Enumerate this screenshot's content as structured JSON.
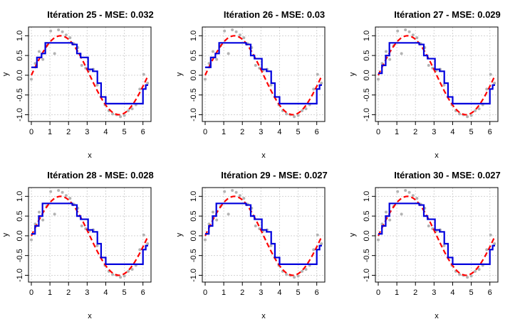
{
  "figure": {
    "panels": [
      {
        "title": "Itération 25 - MSE: 0.032"
      },
      {
        "title": "Itération 26 - MSE: 0.03"
      },
      {
        "title": "Itération 27 - MSE: 0.029"
      },
      {
        "title": "Itération 28 - MSE: 0.028"
      },
      {
        "title": "Itération 29 - MSE: 0.027"
      },
      {
        "title": "Itération 30 - MSE: 0.027"
      }
    ]
  },
  "colors": {
    "points": "#b3b3b3",
    "true_curve": "#ff0000",
    "model_fit": "#0000dd",
    "grid": "#d3d3d3",
    "axis": "#000000"
  },
  "chart_data": [
    {
      "type": "scatter",
      "title": "Itération 25 - MSE: 0.032",
      "xlabel": "x",
      "ylabel": "y",
      "xlim": [
        0,
        6.28
      ],
      "ylim": [
        -1.1,
        1.15
      ],
      "xticks": [
        "0",
        "1",
        "2",
        "3",
        "4",
        "5",
        "6"
      ],
      "yticks": [
        "-1.0",
        "-0.5",
        "0.0",
        "0.5",
        "1.0"
      ],
      "grid": true,
      "series": [
        {
          "kind": "points",
          "x": [
            0.0,
            0.21,
            0.42,
            0.62,
            0.83,
            1.04,
            1.25,
            1.46,
            1.67,
            1.87,
            2.08,
            2.29,
            2.5,
            2.71,
            2.92,
            3.12,
            3.33,
            3.54,
            3.75,
            3.96,
            4.17,
            4.37,
            4.58,
            4.79,
            5.0,
            5.21,
            5.42,
            5.62,
            5.83,
            6.04,
            6.25
          ],
          "y": [
            -0.1,
            0.3,
            0.6,
            0.4,
            0.75,
            1.12,
            0.55,
            1.15,
            1.1,
            1.02,
            0.95,
            0.8,
            0.7,
            0.25,
            0.18,
            0.12,
            0.15,
            -0.25,
            -0.55,
            -0.75,
            -0.9,
            -0.98,
            -1.0,
            -1.05,
            -1.02,
            -0.9,
            -0.85,
            -0.75,
            -0.35,
            0.02,
            -0.2
          ]
        },
        {
          "kind": "curve",
          "function": "sin",
          "x_range": [
            0,
            6.28
          ]
        },
        {
          "kind": "step",
          "x": [
            0.0,
            0.3,
            0.55,
            0.75,
            2.2,
            2.45,
            2.65,
            3.05,
            3.3,
            3.55,
            3.75,
            4.0,
            5.8,
            6.0,
            6.15
          ],
          "y": [
            0.2,
            0.45,
            0.55,
            0.82,
            0.78,
            0.55,
            0.45,
            0.15,
            0.1,
            -0.2,
            -0.55,
            -0.72,
            -0.72,
            -0.35,
            -0.25
          ]
        }
      ]
    },
    {
      "type": "scatter",
      "title": "Itération 26 - MSE: 0.03",
      "xlabel": "x",
      "ylabel": "y",
      "xlim": [
        0,
        6.28
      ],
      "ylim": [
        -1.1,
        1.15
      ],
      "xticks": [
        "0",
        "1",
        "2",
        "3",
        "4",
        "5",
        "6"
      ],
      "yticks": [
        "-1.0",
        "-0.5",
        "0.0",
        "0.5",
        "1.0"
      ],
      "grid": true,
      "series": [
        {
          "kind": "points",
          "x": [
            0.0,
            0.21,
            0.42,
            0.62,
            0.83,
            1.04,
            1.25,
            1.46,
            1.67,
            1.87,
            2.08,
            2.29,
            2.5,
            2.71,
            2.92,
            3.12,
            3.33,
            3.54,
            3.75,
            3.96,
            4.17,
            4.37,
            4.58,
            4.79,
            5.0,
            5.21,
            5.42,
            5.62,
            5.83,
            6.04,
            6.25
          ],
          "y": [
            -0.1,
            0.3,
            0.6,
            0.4,
            0.75,
            1.12,
            0.55,
            1.15,
            1.1,
            1.02,
            0.95,
            0.8,
            0.7,
            0.25,
            0.18,
            0.12,
            0.15,
            -0.25,
            -0.55,
            -0.75,
            -0.9,
            -0.98,
            -1.0,
            -1.05,
            -1.02,
            -0.9,
            -0.85,
            -0.75,
            -0.35,
            0.02,
            -0.2
          ]
        },
        {
          "kind": "curve",
          "function": "sin",
          "x_range": [
            0,
            6.28
          ]
        },
        {
          "kind": "step",
          "x": [
            0.0,
            0.3,
            0.55,
            0.75,
            2.2,
            2.45,
            2.65,
            3.05,
            3.3,
            3.55,
            3.75,
            4.0,
            5.8,
            6.0,
            6.15
          ],
          "y": [
            0.2,
            0.45,
            0.55,
            0.82,
            0.78,
            0.5,
            0.42,
            0.15,
            0.1,
            -0.2,
            -0.55,
            -0.72,
            -0.72,
            -0.35,
            -0.25
          ]
        }
      ]
    },
    {
      "type": "scatter",
      "title": "Itération 27 - MSE: 0.029",
      "xlabel": "x",
      "ylabel": "y",
      "xlim": [
        0,
        6.28
      ],
      "ylim": [
        -1.1,
        1.15
      ],
      "xticks": [
        "0",
        "1",
        "2",
        "3",
        "4",
        "5",
        "6"
      ],
      "yticks": [
        "-1.0",
        "-0.5",
        "0.0",
        "0.5",
        "1.0"
      ],
      "grid": true,
      "series": [
        {
          "kind": "points",
          "x": [
            0.0,
            0.21,
            0.42,
            0.62,
            0.83,
            1.04,
            1.25,
            1.46,
            1.67,
            1.87,
            2.08,
            2.29,
            2.5,
            2.71,
            2.92,
            3.12,
            3.33,
            3.54,
            3.75,
            3.96,
            4.17,
            4.37,
            4.58,
            4.79,
            5.0,
            5.21,
            5.42,
            5.62,
            5.83,
            6.04,
            6.25
          ],
          "y": [
            -0.1,
            0.3,
            0.6,
            0.4,
            0.75,
            1.12,
            0.55,
            1.15,
            1.1,
            1.02,
            0.95,
            0.8,
            0.7,
            0.25,
            0.18,
            0.12,
            0.15,
            -0.25,
            -0.55,
            -0.75,
            -0.9,
            -0.98,
            -1.0,
            -1.05,
            -1.02,
            -0.9,
            -0.85,
            -0.75,
            -0.35,
            0.02,
            -0.2
          ]
        },
        {
          "kind": "curve",
          "function": "sin",
          "x_range": [
            0,
            6.28
          ]
        },
        {
          "kind": "step",
          "x": [
            0.0,
            0.2,
            0.4,
            0.6,
            2.2,
            2.45,
            2.65,
            3.05,
            3.3,
            3.55,
            3.75,
            4.0,
            5.8,
            6.0,
            6.15
          ],
          "y": [
            0.05,
            0.25,
            0.5,
            0.82,
            0.78,
            0.5,
            0.42,
            0.15,
            0.1,
            -0.2,
            -0.55,
            -0.72,
            -0.72,
            -0.35,
            -0.25
          ]
        }
      ]
    },
    {
      "type": "scatter",
      "title": "Itération 28 - MSE: 0.028",
      "xlabel": "x",
      "ylabel": "y",
      "xlim": [
        0,
        6.28
      ],
      "ylim": [
        -1.1,
        1.15
      ],
      "xticks": [
        "0",
        "1",
        "2",
        "3",
        "4",
        "5",
        "6"
      ],
      "yticks": [
        "-1.0",
        "-0.5",
        "0.0",
        "0.5",
        "1.0"
      ],
      "grid": true,
      "series": [
        {
          "kind": "points",
          "x": [
            0.0,
            0.21,
            0.42,
            0.62,
            0.83,
            1.04,
            1.25,
            1.46,
            1.67,
            1.87,
            2.08,
            2.29,
            2.5,
            2.71,
            2.92,
            3.12,
            3.33,
            3.54,
            3.75,
            3.96,
            4.17,
            4.37,
            4.58,
            4.79,
            5.0,
            5.21,
            5.42,
            5.62,
            5.83,
            6.04,
            6.25
          ],
          "y": [
            -0.1,
            0.3,
            0.6,
            0.4,
            0.75,
            1.12,
            0.55,
            1.15,
            1.1,
            1.02,
            0.95,
            0.8,
            0.7,
            0.25,
            0.18,
            0.12,
            0.15,
            -0.25,
            -0.55,
            -0.75,
            -0.9,
            -0.98,
            -1.0,
            -1.05,
            -1.02,
            -0.9,
            -0.85,
            -0.75,
            -0.35,
            0.02,
            -0.2
          ]
        },
        {
          "kind": "curve",
          "function": "sin",
          "x_range": [
            0,
            6.28
          ]
        },
        {
          "kind": "step",
          "x": [
            0.0,
            0.2,
            0.4,
            0.6,
            2.2,
            2.45,
            2.65,
            3.05,
            3.3,
            3.55,
            3.75,
            4.0,
            5.8,
            6.0,
            6.15
          ],
          "y": [
            0.05,
            0.25,
            0.5,
            0.82,
            0.78,
            0.5,
            0.42,
            0.15,
            0.1,
            -0.2,
            -0.55,
            -0.72,
            -0.72,
            -0.35,
            -0.25
          ]
        }
      ]
    },
    {
      "type": "scatter",
      "title": "Itération 29 - MSE: 0.027",
      "xlabel": "x",
      "ylabel": "y",
      "xlim": [
        0,
        6.28
      ],
      "ylim": [
        -1.1,
        1.15
      ],
      "xticks": [
        "0",
        "1",
        "2",
        "3",
        "4",
        "5",
        "6"
      ],
      "yticks": [
        "-1.0",
        "-0.5",
        "0.0",
        "0.5",
        "1.0"
      ],
      "grid": true,
      "series": [
        {
          "kind": "points",
          "x": [
            0.0,
            0.21,
            0.42,
            0.62,
            0.83,
            1.04,
            1.25,
            1.46,
            1.67,
            1.87,
            2.08,
            2.29,
            2.5,
            2.71,
            2.92,
            3.12,
            3.33,
            3.54,
            3.75,
            3.96,
            4.17,
            4.37,
            4.58,
            4.79,
            5.0,
            5.21,
            5.42,
            5.62,
            5.83,
            6.04,
            6.25
          ],
          "y": [
            -0.1,
            0.3,
            0.6,
            0.4,
            0.75,
            1.12,
            0.55,
            1.15,
            1.1,
            1.02,
            0.95,
            0.8,
            0.7,
            0.25,
            0.18,
            0.12,
            0.15,
            -0.25,
            -0.55,
            -0.75,
            -0.9,
            -0.98,
            -1.0,
            -1.05,
            -1.02,
            -0.9,
            -0.85,
            -0.75,
            -0.35,
            0.02,
            -0.2
          ]
        },
        {
          "kind": "curve",
          "function": "sin",
          "x_range": [
            0,
            6.28
          ]
        },
        {
          "kind": "step",
          "x": [
            0.0,
            0.2,
            0.4,
            0.6,
            2.2,
            2.45,
            2.65,
            3.05,
            3.3,
            3.55,
            3.75,
            4.0,
            5.8,
            6.0,
            6.15
          ],
          "y": [
            0.05,
            0.25,
            0.5,
            0.82,
            0.78,
            0.5,
            0.42,
            0.15,
            0.1,
            -0.2,
            -0.55,
            -0.72,
            -0.72,
            -0.35,
            -0.25
          ]
        }
      ]
    },
    {
      "type": "scatter",
      "title": "Itération 30 - MSE: 0.027",
      "xlabel": "x",
      "ylabel": "y",
      "xlim": [
        0,
        6.28
      ],
      "ylim": [
        -1.1,
        1.15
      ],
      "xticks": [
        "0",
        "1",
        "2",
        "3",
        "4",
        "5",
        "6"
      ],
      "yticks": [
        "-1.0",
        "-0.5",
        "0.0",
        "0.5",
        "1.0"
      ],
      "grid": true,
      "series": [
        {
          "kind": "points",
          "x": [
            0.0,
            0.21,
            0.42,
            0.62,
            0.83,
            1.04,
            1.25,
            1.46,
            1.67,
            1.87,
            2.08,
            2.29,
            2.5,
            2.71,
            2.92,
            3.12,
            3.33,
            3.54,
            3.75,
            3.96,
            4.17,
            4.37,
            4.58,
            4.79,
            5.0,
            5.21,
            5.42,
            5.62,
            5.83,
            6.04,
            6.25
          ],
          "y": [
            -0.1,
            0.3,
            0.6,
            0.4,
            0.75,
            1.12,
            0.55,
            1.15,
            1.1,
            1.02,
            0.95,
            0.8,
            0.7,
            0.25,
            0.18,
            0.12,
            0.15,
            -0.25,
            -0.55,
            -0.75,
            -0.9,
            -0.98,
            -1.0,
            -1.05,
            -1.02,
            -0.9,
            -0.85,
            -0.75,
            -0.35,
            0.02,
            -0.2
          ]
        },
        {
          "kind": "curve",
          "function": "sin",
          "x_range": [
            0,
            6.28
          ]
        },
        {
          "kind": "step",
          "x": [
            0.0,
            0.2,
            0.4,
            0.6,
            2.2,
            2.45,
            2.65,
            3.05,
            3.3,
            3.55,
            3.75,
            4.0,
            5.8,
            6.0,
            6.15
          ],
          "y": [
            0.05,
            0.25,
            0.5,
            0.82,
            0.78,
            0.5,
            0.42,
            0.15,
            0.1,
            -0.2,
            -0.55,
            -0.72,
            -0.72,
            -0.35,
            -0.25
          ]
        }
      ]
    }
  ]
}
